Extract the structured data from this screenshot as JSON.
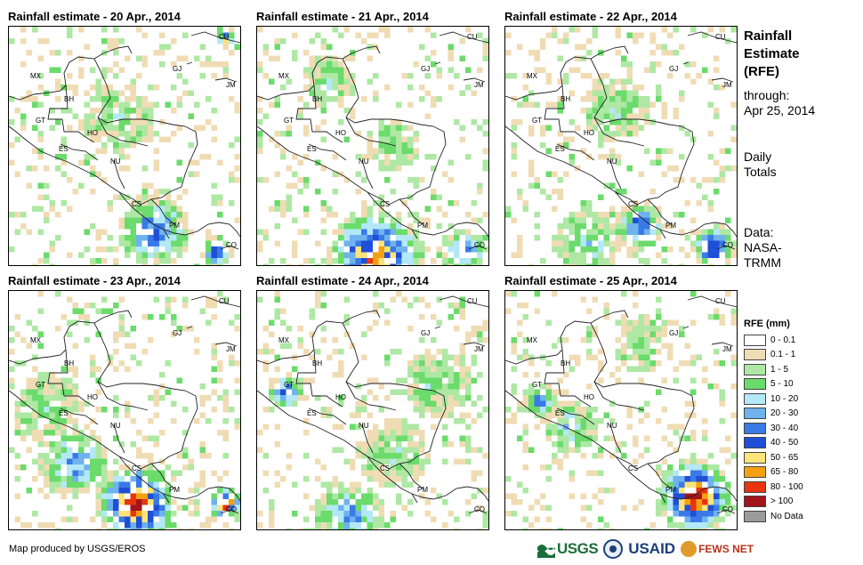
{
  "panels": [
    {
      "title": "Rainfall estimate - 20 Apr., 2014"
    },
    {
      "title": "Rainfall estimate - 21 Apr., 2014"
    },
    {
      "title": "Rainfall estimate - 22 Apr., 2014"
    },
    {
      "title": "Rainfall estimate - 23 Apr., 2014"
    },
    {
      "title": "Rainfall estimate - 24 Apr., 2014"
    },
    {
      "title": "Rainfall estimate - 25 Apr., 2014"
    }
  ],
  "country_labels": [
    "MX",
    "BH",
    "GT",
    "HO",
    "ES",
    "NU",
    "CS",
    "PM",
    "CU",
    "JM",
    "CO",
    "GJ"
  ],
  "side": {
    "title_line1": "Rainfall",
    "title_line2": "Estimate",
    "title_line3": "(RFE)",
    "through_label": "through:",
    "through_date": "Apr 25, 2014",
    "daily_line1": "Daily",
    "daily_line2": "Totals",
    "data_line1": "Data:",
    "data_line2": "NASA-",
    "data_line3": "TRMM"
  },
  "legend": {
    "title": "RFE (mm)",
    "items": [
      {
        "label": "0 - 0.1",
        "color": "#ffffff"
      },
      {
        "label": "0.1 - 1",
        "color": "#f0dcb4"
      },
      {
        "label": "1 - 5",
        "color": "#aee8a4"
      },
      {
        "label": "5 - 10",
        "color": "#6bdb6b"
      },
      {
        "label": "10 - 20",
        "color": "#b3e8f7"
      },
      {
        "label": "20 - 30",
        "color": "#6fb2ee"
      },
      {
        "label": "30 - 40",
        "color": "#3a7ae6"
      },
      {
        "label": "40 - 50",
        "color": "#1f4fd6"
      },
      {
        "label": "50 - 65",
        "color": "#fde47a"
      },
      {
        "label": "65 - 80",
        "color": "#f5a011"
      },
      {
        "label": "80 - 100",
        "color": "#e8340f"
      },
      {
        "label": "> 100",
        "color": "#a3141b"
      },
      {
        "label": "No Data",
        "color": "#9a9a9a"
      }
    ]
  },
  "credit": "Map produced by USGS/EROS",
  "logos": {
    "usgs": "USGS",
    "usaid": "USAID",
    "fews": "FEWS NET"
  }
}
